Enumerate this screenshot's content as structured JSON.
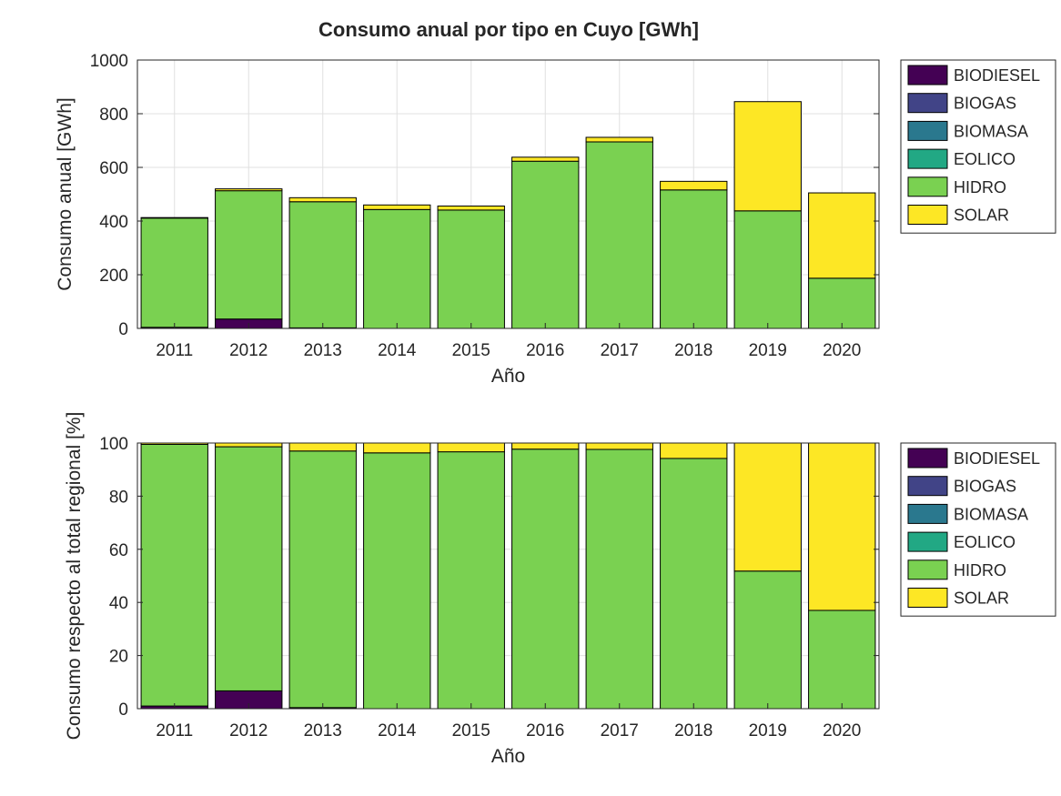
{
  "figure": {
    "title": "Consumo anual por tipo en Cuyo [GWh]"
  },
  "colors": {
    "BIODIESEL": "#440154",
    "BIOGAS": "#414487",
    "BIOMASA": "#2a788e",
    "EOLICO": "#22a884",
    "HIDRO": "#7ad151",
    "SOLAR": "#fde725",
    "grid": "#e0e0e0",
    "axis": "#262626",
    "bar_edge": "#000000"
  },
  "chart_data": [
    {
      "type": "bar",
      "stacked": true,
      "xlabel": "Año",
      "ylabel": "Consumo anual [GWh]",
      "ylim": [
        0,
        1000
      ],
      "yticks": [
        "0",
        "200",
        "400",
        "600",
        "800",
        "1000"
      ],
      "grid": true,
      "legend_position": "outside-top-right",
      "categories": [
        "2011",
        "2012",
        "2013",
        "2014",
        "2015",
        "2016",
        "2017",
        "2018",
        "2019",
        "2020"
      ],
      "series": [
        {
          "name": "BIODIESEL",
          "values": [
            4,
            35,
            2,
            0,
            0,
            0,
            0,
            0,
            0,
            0
          ]
        },
        {
          "name": "BIOGAS",
          "values": [
            0,
            0,
            0,
            0,
            0,
            0,
            0,
            0,
            0,
            0
          ]
        },
        {
          "name": "BIOMASA",
          "values": [
            0,
            0,
            0,
            0,
            0,
            0,
            0,
            0,
            0,
            0
          ]
        },
        {
          "name": "EOLICO",
          "values": [
            0,
            0,
            0,
            0,
            0,
            0,
            0,
            0,
            0,
            0
          ]
        },
        {
          "name": "HIDRO",
          "values": [
            407,
            478,
            470,
            443,
            441,
            623,
            695,
            516,
            438,
            187
          ]
        },
        {
          "name": "SOLAR",
          "values": [
            2,
            7,
            15,
            17,
            15,
            15,
            17,
            32,
            407,
            318
          ]
        }
      ]
    },
    {
      "type": "bar",
      "stacked": true,
      "xlabel": "Año",
      "ylabel": "Consumo respecto al total regional [%]",
      "ylim": [
        0,
        100
      ],
      "yticks": [
        "0",
        "20",
        "40",
        "60",
        "80",
        "100"
      ],
      "grid": true,
      "legend_position": "outside-top-right",
      "categories": [
        "2011",
        "2012",
        "2013",
        "2014",
        "2015",
        "2016",
        "2017",
        "2018",
        "2019",
        "2020"
      ],
      "series": [
        {
          "name": "BIODIESEL",
          "values": [
            1.0,
            6.7,
            0.4,
            0,
            0,
            0,
            0,
            0,
            0,
            0
          ]
        },
        {
          "name": "BIOGAS",
          "values": [
            0,
            0,
            0,
            0,
            0,
            0,
            0,
            0,
            0,
            0
          ]
        },
        {
          "name": "BIOMASA",
          "values": [
            0,
            0,
            0,
            0,
            0,
            0,
            0,
            0,
            0,
            0
          ]
        },
        {
          "name": "EOLICO",
          "values": [
            0,
            0,
            0,
            0,
            0,
            0,
            0,
            0,
            0,
            0
          ]
        },
        {
          "name": "HIDRO",
          "values": [
            98.5,
            91.9,
            96.6,
            96.3,
            96.7,
            97.7,
            97.6,
            94.2,
            51.8,
            37.0
          ]
        },
        {
          "name": "SOLAR",
          "values": [
            0.5,
            1.4,
            3.0,
            3.7,
            3.3,
            2.3,
            2.4,
            5.8,
            48.2,
            63.0
          ]
        }
      ]
    }
  ]
}
